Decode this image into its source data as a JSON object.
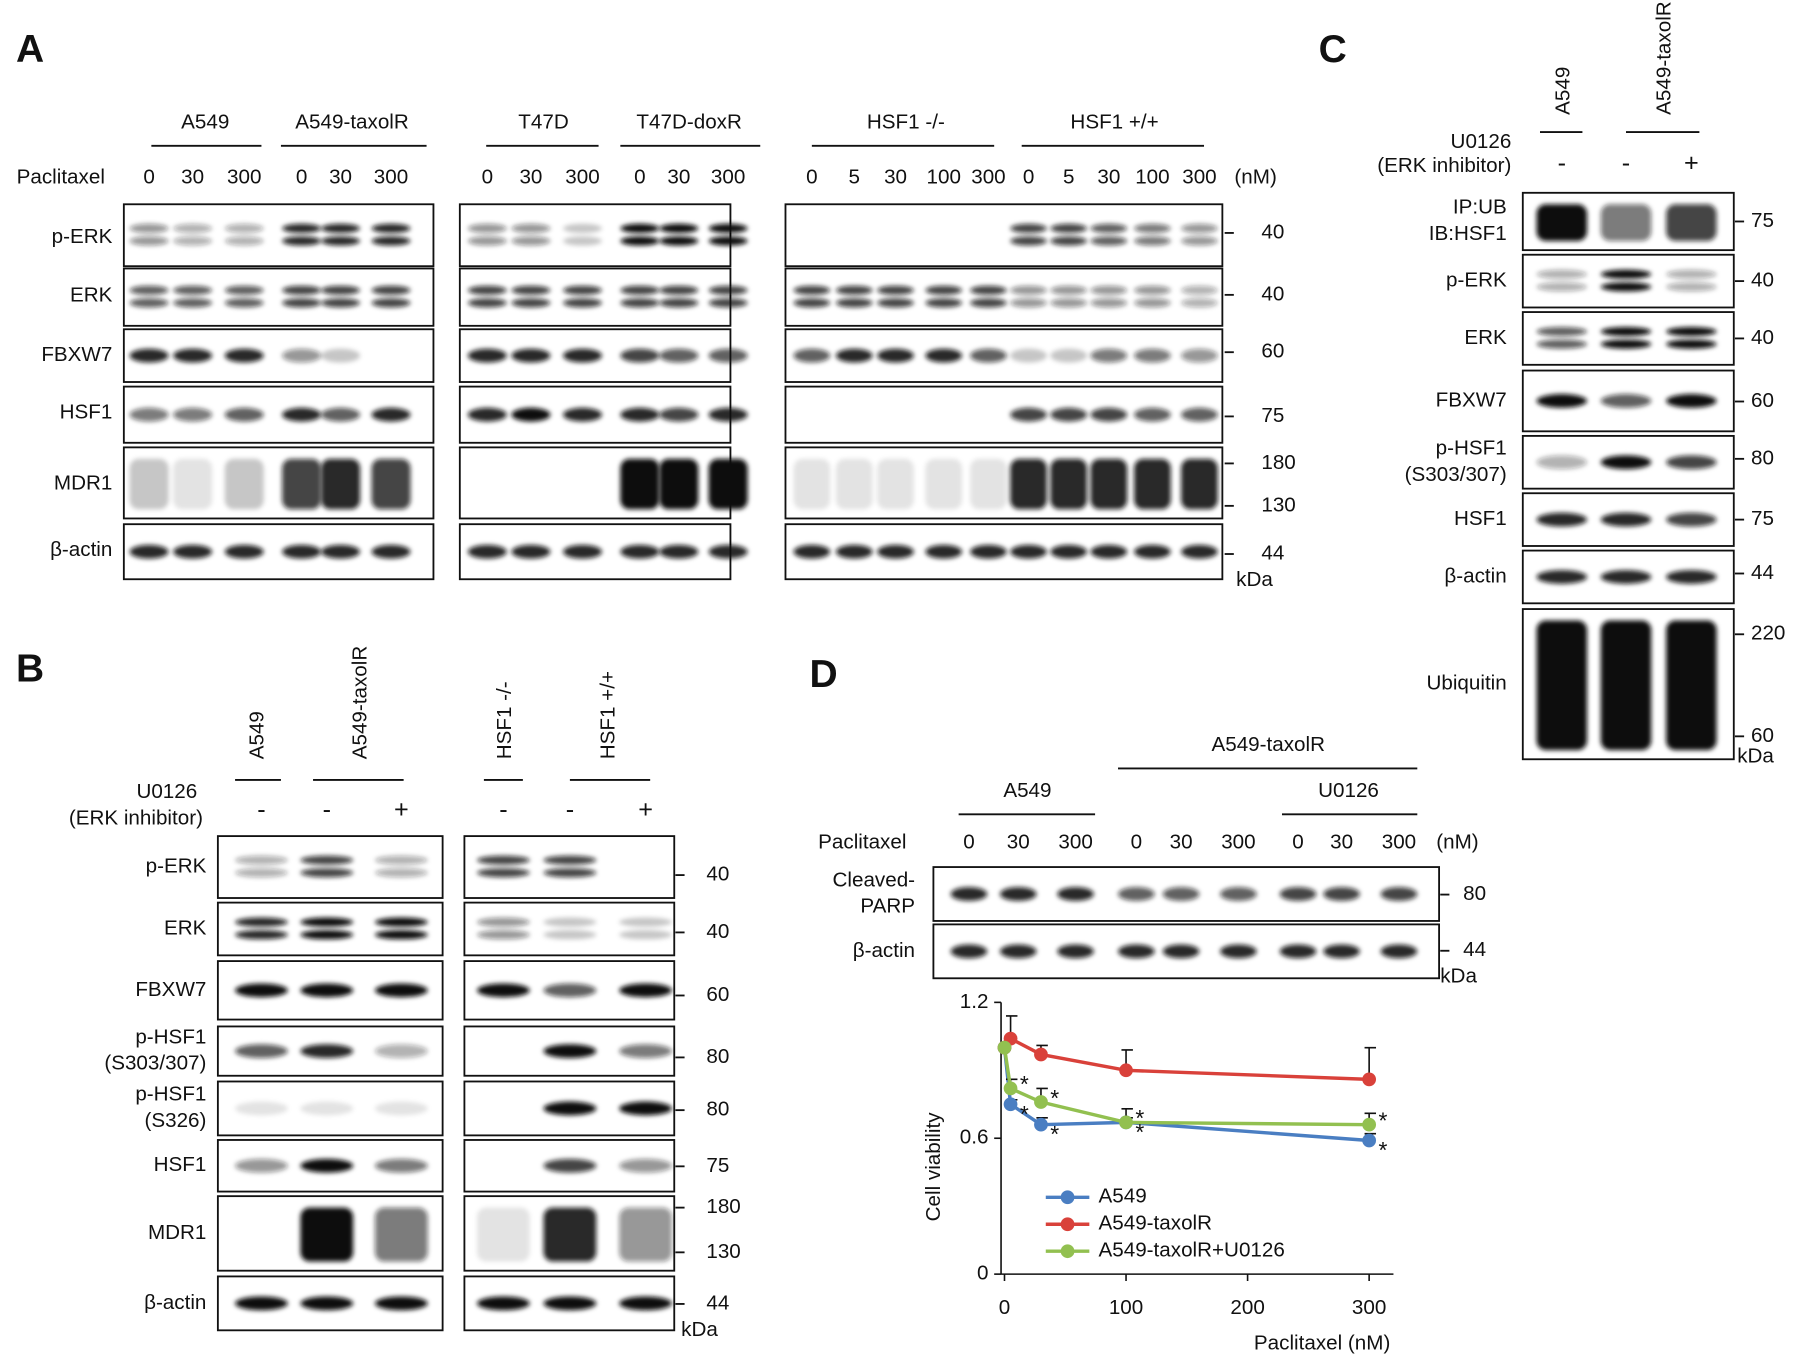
{
  "panels": {
    "A": {
      "label": "A",
      "blots": [
        {
          "groups": [
            "A549",
            "A549-taxolR"
          ],
          "treatment": "Paclitaxel",
          "doses": [
            0,
            30,
            300,
            0,
            30,
            300
          ],
          "rows": [
            "p-ERK",
            "ERK",
            "FBXW7",
            "HSF1",
            "MDR1",
            "β-actin"
          ]
        },
        {
          "groups": [
            "T47D",
            "T47D-doxR"
          ],
          "doses": [
            0,
            30,
            300,
            0,
            30,
            300
          ]
        },
        {
          "groups": [
            "HSF1 -/-",
            "HSF1 +/+"
          ],
          "doses": [
            0,
            5,
            30,
            100,
            300,
            0,
            5,
            30,
            100,
            300
          ],
          "unit": "(nM)",
          "markers": [
            40,
            40,
            60,
            75,
            180,
            130,
            44
          ],
          "marker_unit": "kDa"
        }
      ]
    },
    "B": {
      "label": "B",
      "inhibitor": [
        "U0126",
        "(ERK inhibitor)"
      ],
      "blots": [
        {
          "groups": [
            "A549",
            "A549-taxolR"
          ],
          "signs": [
            "-",
            "-",
            "+"
          ]
        },
        {
          "groups": [
            "HSF1 -/-",
            "HSF1 +/+"
          ],
          "signs": [
            "-",
            "-",
            "+"
          ]
        }
      ],
      "rows": [
        "p-ERK",
        "ERK",
        "FBXW7",
        [
          "p-HSF1",
          "(S303/307)"
        ],
        [
          "p-HSF1",
          "(S326)"
        ],
        "HSF1",
        "MDR1",
        "β-actin"
      ],
      "markers": [
        40,
        40,
        60,
        80,
        80,
        75,
        180,
        130,
        44
      ],
      "marker_unit": "kDa"
    },
    "C": {
      "label": "C",
      "groups": [
        "A549",
        "A549-taxolR"
      ],
      "inhibitor": [
        "U0126",
        "(ERK inhibitor)"
      ],
      "signs": [
        "-",
        "-",
        "+"
      ],
      "rows": [
        [
          "IP:UB",
          "IB:HSF1"
        ],
        "p-ERK",
        "ERK",
        "FBXW7",
        [
          "p-HSF1",
          "(S303/307)"
        ],
        "HSF1",
        "β-actin",
        "Ubiquitin"
      ],
      "markers": [
        75,
        40,
        40,
        60,
        80,
        75,
        44,
        220,
        60
      ],
      "marker_unit": "kDa"
    },
    "D": {
      "label": "D",
      "groups": [
        "A549-taxolR",
        "A549",
        "U0126"
      ],
      "treatment": "Paclitaxel",
      "doses": [
        0,
        30,
        300,
        0,
        30,
        300,
        0,
        30,
        300
      ],
      "unit": "(nM)",
      "rows": [
        [
          "Cleaved-",
          "PARP"
        ],
        "β-actin"
      ],
      "markers": [
        80,
        44
      ],
      "marker_unit": "kDa"
    }
  },
  "chart_data": {
    "type": "line",
    "xlabel": "Paclitaxel (nM)",
    "ylabel": "Cell viability",
    "x": [
      0,
      5,
      30,
      100,
      300
    ],
    "xlim": [
      0,
      320
    ],
    "xticks": [
      0,
      100,
      200,
      300
    ],
    "ylim": [
      0,
      1.2
    ],
    "yticks": [
      0,
      0.6,
      1.2
    ],
    "legend": "lower left",
    "series": [
      {
        "name": "A549",
        "color": "#4a7ec2",
        "values": [
          1,
          0.75,
          0.66,
          0.67,
          0.59
        ],
        "errors": [
          null,
          0.02,
          0.03,
          0.02,
          0.03
        ],
        "significance": [
          null,
          "*",
          "*",
          "*",
          "*"
        ]
      },
      {
        "name": "A549-taxolR",
        "color": "#d9413a",
        "values": [
          1,
          1.04,
          0.97,
          0.9,
          0.86
        ],
        "errors": [
          null,
          0.1,
          0.04,
          0.09,
          0.14
        ]
      },
      {
        "name": "A549-taxolR+U0126",
        "color": "#92c050",
        "values": [
          1,
          0.82,
          0.76,
          0.67,
          0.66
        ],
        "errors": [
          null,
          0.04,
          0.06,
          0.06,
          0.05
        ],
        "significance": [
          null,
          "*",
          "*",
          "*",
          "*"
        ]
      }
    ]
  }
}
